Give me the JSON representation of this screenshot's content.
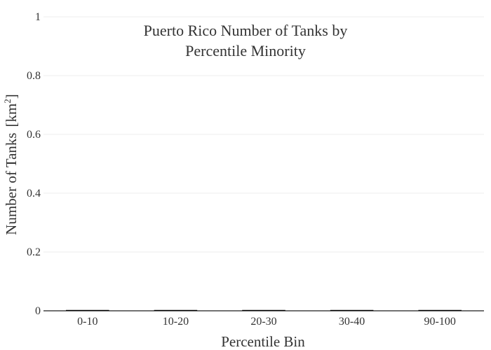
{
  "chart_data": {
    "type": "bar",
    "title_lines": [
      "Puerto Rico Number of Tanks by",
      "Percentile Minority"
    ],
    "xlabel": "Percentile Bin",
    "ylabel_main": "Number of Tanks",
    "ylabel_unit_base": "km",
    "ylabel_unit_exp": "2",
    "categories": [
      "0-10",
      "10-20",
      "20-30",
      "30-40",
      "90-100"
    ],
    "values": [
      0,
      0,
      0,
      0,
      0
    ],
    "ylim": [
      0,
      1
    ],
    "yticks": [
      0,
      0.2,
      0.4,
      0.6,
      0.8,
      1
    ],
    "ytick_labels": [
      "0",
      "0.2",
      "0.4",
      "0.6",
      "0.8",
      "1"
    ],
    "grid": true,
    "legend": "none",
    "bar_color": "#000000"
  }
}
